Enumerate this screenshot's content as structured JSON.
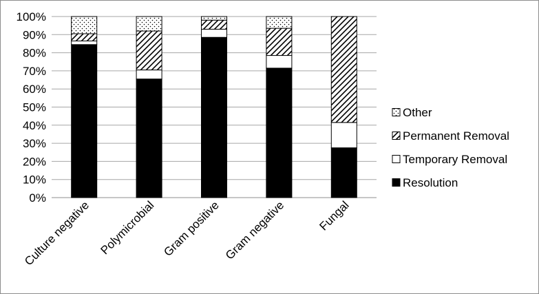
{
  "chart_data": {
    "type": "bar",
    "stacked": true,
    "normalized": true,
    "categories": [
      "Culture negative",
      "Polymicrobial",
      "Gram positive",
      "Gram negative",
      "Fungal"
    ],
    "series": [
      {
        "name": "Resolution",
        "values": [
          84.5,
          65.5,
          88.5,
          71.5,
          27.5
        ],
        "color": "#000000",
        "pattern": "solid"
      },
      {
        "name": "Temporary Removal",
        "values": [
          2,
          5,
          4.5,
          7,
          14
        ],
        "color": "#ffffff",
        "pattern": "none"
      },
      {
        "name": "Permanent Removal",
        "values": [
          4,
          21.5,
          5,
          15,
          58.5
        ],
        "color": "#000000",
        "pattern": "diagonal-hatch"
      },
      {
        "name": "Other",
        "values": [
          9.5,
          8,
          2,
          6.5,
          0
        ],
        "color": "#000000",
        "pattern": "dots"
      }
    ],
    "y_ticks": [
      "0%",
      "10%",
      "20%",
      "30%",
      "40%",
      "50%",
      "60%",
      "70%",
      "80%",
      "90%",
      "100%"
    ],
    "ylim": [
      0,
      100
    ],
    "title": "",
    "xlabel": "",
    "ylabel": "",
    "grid": true,
    "legend_position": "right",
    "legend_order": [
      "Other",
      "Permanent Removal",
      "Temporary Removal",
      "Resolution"
    ]
  }
}
